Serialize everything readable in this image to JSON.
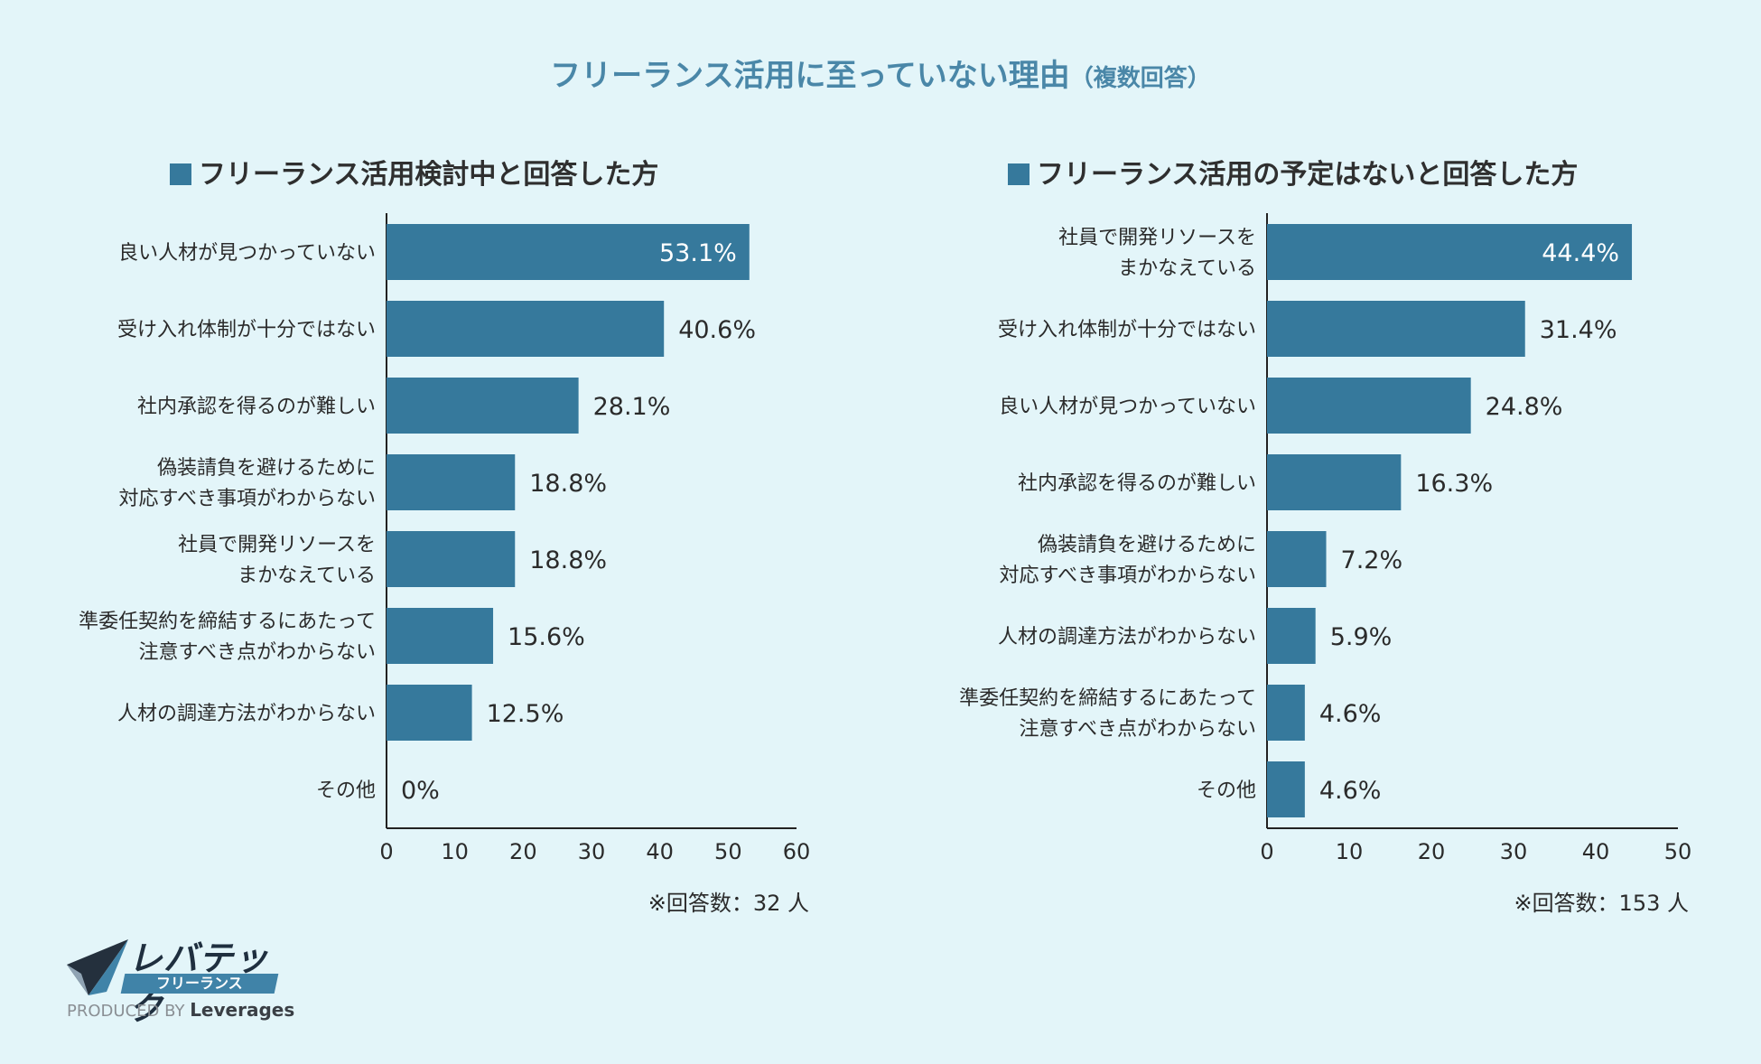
{
  "title": "フリーランス活用に至っていない理由",
  "title_suffix": "（複数回答）",
  "brand": {
    "name": "レバテック",
    "band": "フリーランス",
    "produced_by": "PRODUCED BY",
    "company": "Leverages",
    "bar_color": "#36799c"
  },
  "chart_data": [
    {
      "type": "bar",
      "orientation": "horizontal",
      "title": "フリーランス活用検討中と回答した方",
      "categories": [
        "良い人材が見つかっていない",
        "受け入れ体制が十分ではない",
        "社内承認を得るのが難しい",
        "偽装請負を避けるために\n対応すべき事項がわからない",
        "社員で開発リソースを\nまかなえている",
        "準委任契約を締結するにあたって\n注意すべき点がわからない",
        "人材の調達方法がわからない",
        "その他"
      ],
      "values": [
        53.1,
        40.6,
        28.1,
        18.8,
        18.8,
        15.6,
        12.5,
        0
      ],
      "value_labels": [
        "53.1%",
        "40.6%",
        "28.1%",
        "18.8%",
        "18.8%",
        "15.6%",
        "12.5%",
        "0%"
      ],
      "xlim": [
        0,
        60
      ],
      "xticks": [
        0,
        10,
        20,
        30,
        40,
        50,
        60
      ],
      "footnote": "※回答数：32 人"
    },
    {
      "type": "bar",
      "orientation": "horizontal",
      "title": "フリーランス活用の予定はないと回答した方",
      "categories": [
        "社員で開発リソースを\nまかなえている",
        "受け入れ体制が十分ではない",
        "良い人材が見つかっていない",
        "社内承認を得るのが難しい",
        "偽装請負を避けるために\n対応すべき事項がわからない",
        "人材の調達方法がわからない",
        "準委任契約を締結するにあたって\n注意すべき点がわからない",
        "その他"
      ],
      "values": [
        44.4,
        31.4,
        24.8,
        16.3,
        7.2,
        5.9,
        4.6,
        4.6
      ],
      "value_labels": [
        "44.4%",
        "31.4%",
        "24.8%",
        "16.3%",
        "7.2%",
        "5.9%",
        "4.6%",
        "4.6%"
      ],
      "xlim": [
        0,
        50
      ],
      "xticks": [
        0,
        10,
        20,
        30,
        40,
        50
      ],
      "footnote": "※回答数：153 人"
    }
  ]
}
